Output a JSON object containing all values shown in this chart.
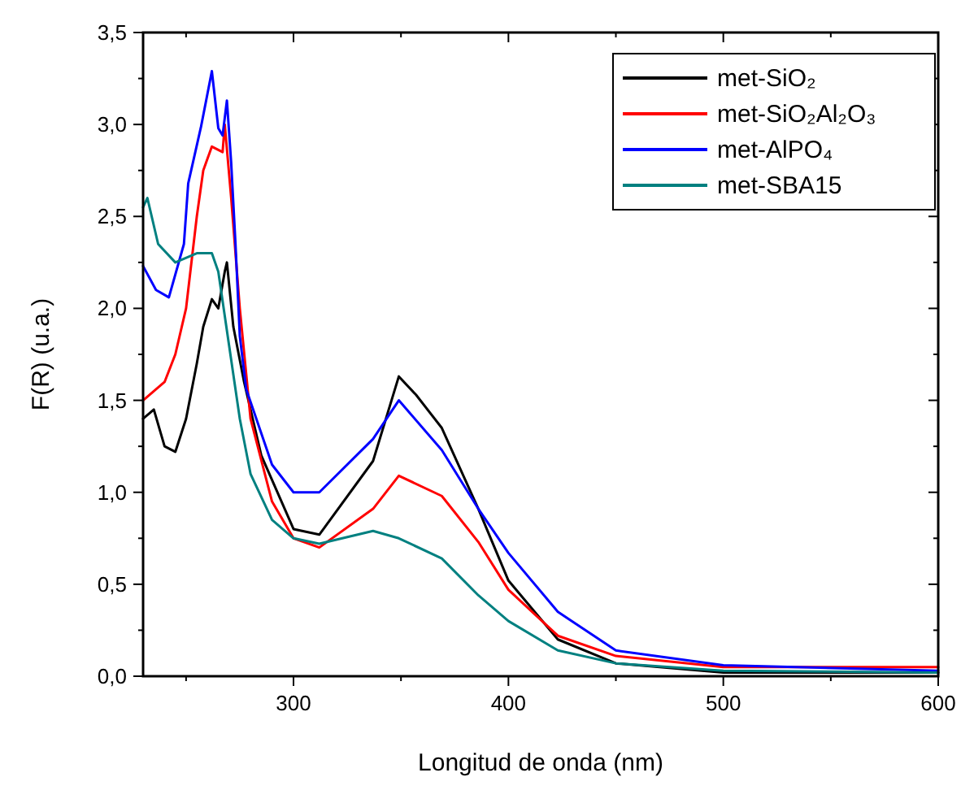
{
  "chart_data": {
    "type": "line",
    "xlabel": "Longitud de onda (nm)",
    "ylabel": "F(R) (u.a.)",
    "xlim": [
      230,
      600
    ],
    "ylim": [
      0,
      3.5
    ],
    "xticks": [
      {
        "value": 250,
        "label": null
      },
      300,
      {
        "value": 350,
        "label": null
      },
      400,
      {
        "value": 450,
        "label": null
      },
      500,
      {
        "value": 550,
        "label": null
      },
      600
    ],
    "yticks": [
      {
        "value": 0,
        "label": "0,0"
      },
      {
        "value": 0.5,
        "label": "0,5"
      },
      {
        "value": 1,
        "label": "1,0"
      },
      {
        "value": 1.5,
        "label": "1,5"
      },
      {
        "value": 2,
        "label": "2,0"
      },
      {
        "value": 2.5,
        "label": "2,5"
      },
      {
        "value": 3,
        "label": "3,0"
      },
      {
        "value": 3.5,
        "label": "3,5"
      }
    ],
    "legend": "top right",
    "grid": false,
    "marker": "none",
    "line_style": "solid",
    "series": [
      {
        "name": "met-SiO₂",
        "color": "#000000",
        "x": [
          230,
          235,
          240,
          245,
          250,
          255,
          258,
          262,
          265,
          268,
          269,
          272,
          277,
          285,
          300,
          312,
          337,
          349,
          357,
          369,
          386,
          400,
          423,
          450,
          500,
          600
        ],
        "values": [
          1.4,
          1.45,
          1.25,
          1.22,
          1.4,
          1.7,
          1.9,
          2.05,
          2.0,
          2.2,
          2.25,
          1.9,
          1.6,
          1.2,
          0.8,
          0.77,
          1.17,
          1.63,
          1.53,
          1.35,
          0.91,
          0.52,
          0.2,
          0.07,
          0.02,
          0.02
        ]
      },
      {
        "name": "met-SiO₂Al₂O₃",
        "color": "#ff0000",
        "x": [
          230,
          240,
          245,
          250,
          255,
          258,
          262,
          267,
          268,
          271,
          275,
          280,
          290,
          300,
          312,
          337,
          349,
          369,
          386,
          400,
          423,
          450,
          500,
          600
        ],
        "values": [
          1.5,
          1.6,
          1.75,
          2.0,
          2.5,
          2.75,
          2.88,
          2.85,
          3.0,
          2.6,
          2.0,
          1.4,
          0.95,
          0.75,
          0.7,
          0.91,
          1.09,
          0.98,
          0.73,
          0.47,
          0.22,
          0.11,
          0.05,
          0.05
        ]
      },
      {
        "name": "met-AlPO₄",
        "color": "#0000ff",
        "x": [
          230,
          236,
          242,
          249,
          251,
          257,
          262,
          265,
          267,
          269,
          271,
          273,
          275,
          278,
          290,
          300,
          312,
          337,
          349,
          369,
          386,
          400,
          423,
          450,
          500,
          600
        ],
        "values": [
          2.23,
          2.1,
          2.06,
          2.35,
          2.68,
          2.99,
          3.29,
          2.98,
          2.94,
          3.13,
          2.79,
          2.35,
          1.85,
          1.56,
          1.15,
          1.0,
          1.0,
          1.29,
          1.5,
          1.23,
          0.91,
          0.67,
          0.35,
          0.14,
          0.06,
          0.03
        ]
      },
      {
        "name": "met-SBA15",
        "color": "#008080",
        "x": [
          230,
          232,
          237,
          245,
          255,
          262,
          265,
          270,
          275,
          280,
          290,
          300,
          312,
          337,
          349,
          369,
          386,
          400,
          423,
          450,
          500,
          600
        ],
        "values": [
          2.55,
          2.6,
          2.35,
          2.25,
          2.3,
          2.3,
          2.2,
          1.8,
          1.4,
          1.1,
          0.85,
          0.75,
          0.72,
          0.79,
          0.75,
          0.64,
          0.44,
          0.3,
          0.14,
          0.07,
          0.03,
          0.02
        ]
      }
    ]
  }
}
